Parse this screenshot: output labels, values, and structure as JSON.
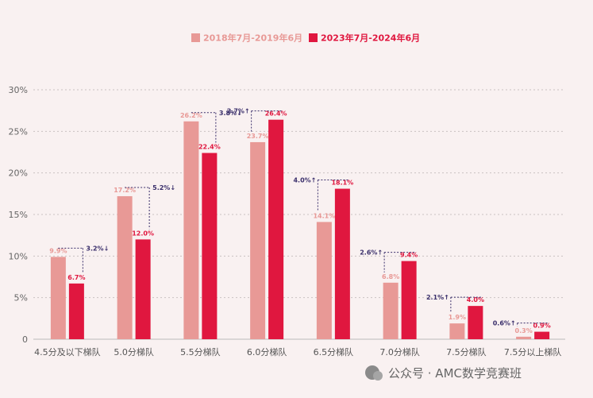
{
  "chart_data": {
    "type": "bar",
    "categories": [
      "4.5分及以下梯队",
      "5.0分梯队",
      "5.5分梯队",
      "6.0分梯队",
      "6.5分梯队",
      "7.0分梯队",
      "7.5分梯队",
      "7.5分以上梯队"
    ],
    "series": [
      {
        "name": "2018年7月-2019年6月",
        "color": "#e89996",
        "values": [
          9.9,
          17.2,
          26.2,
          23.7,
          14.1,
          6.8,
          1.9,
          0.3
        ],
        "labels": [
          "9.9%",
          "17.2%",
          "26.2%",
          "23.7%",
          "14.1%",
          "6.8%",
          "1.9%",
          "0.3%"
        ]
      },
      {
        "name": "2023年7月-2024年6月",
        "color": "#e0173f",
        "values": [
          6.7,
          12.0,
          22.4,
          26.4,
          18.1,
          9.4,
          4.0,
          0.9
        ],
        "labels": [
          "6.7%",
          "12.0%",
          "22.4%",
          "26.4%",
          "18.1%",
          "9.4%",
          "4.0%",
          "0.9%"
        ]
      }
    ],
    "changes": [
      "3.2%↓",
      "5.2%↓",
      "3.8%↓",
      "2.7%↑",
      "4.0%↑",
      "2.6%↑",
      "2.1%↑",
      "0.6%↑"
    ],
    "ylim": [
      0,
      30
    ],
    "yticks": [
      "0",
      "5%",
      "10%",
      "15%",
      "20%",
      "25%",
      "30%"
    ],
    "grid": true,
    "legend_position": "top-center"
  },
  "watermark": "公众号 · AMC数学竞赛班"
}
